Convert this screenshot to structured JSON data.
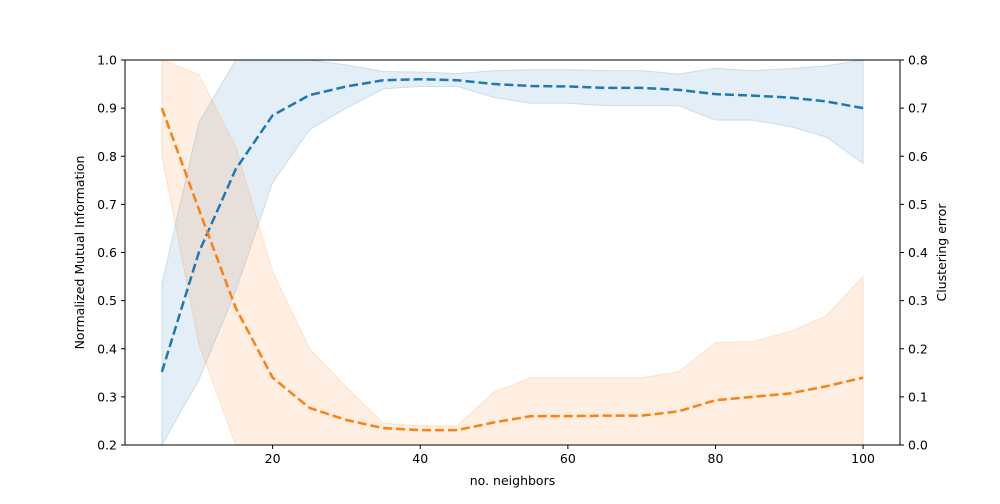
{
  "chart_data": {
    "type": "line",
    "xlabel": "no. neighbors",
    "ylabel": "Normalized Mutual Information",
    "y2label": "Clustering error",
    "xlim": [
      0,
      105
    ],
    "ylim": [
      0.2,
      1.0
    ],
    "y2lim": [
      0.0,
      0.8
    ],
    "xticks": [
      20,
      40,
      60,
      80,
      100
    ],
    "xtick_labels": [
      "20",
      "40",
      "60",
      "80",
      "100"
    ],
    "yticks": [
      0.2,
      0.3,
      0.4,
      0.5,
      0.6,
      0.7,
      0.8,
      0.9,
      1.0
    ],
    "ytick_labels": [
      "0.2",
      "0.3",
      "0.4",
      "0.5",
      "0.6",
      "0.7",
      "0.8",
      "0.9",
      "1.0"
    ],
    "y2ticks": [
      0.0,
      0.1,
      0.2,
      0.3,
      0.4,
      0.5,
      0.6,
      0.7,
      0.8
    ],
    "y2tick_labels": [
      "0.0",
      "0.1",
      "0.2",
      "0.3",
      "0.4",
      "0.5",
      "0.6",
      "0.7",
      "0.8"
    ],
    "grid": false,
    "x": [
      5,
      10,
      15,
      20,
      25,
      30,
      35,
      40,
      45,
      50,
      55,
      60,
      65,
      70,
      75,
      80,
      85,
      90,
      95,
      100
    ],
    "series": [
      {
        "axis": "left",
        "color": "#1f77b4",
        "linestyle": "dashed",
        "values": [
          0.352,
          0.6,
          0.773,
          0.885,
          0.927,
          0.945,
          0.958,
          0.96,
          0.958,
          0.95,
          0.946,
          0.945,
          0.942,
          0.942,
          0.938,
          0.929,
          0.926,
          0.922,
          0.914,
          0.9
        ],
        "lower": [
          0.17,
          0.335,
          0.52,
          0.745,
          0.855,
          0.9,
          0.94,
          0.945,
          0.945,
          0.922,
          0.91,
          0.91,
          0.905,
          0.905,
          0.905,
          0.875,
          0.875,
          0.862,
          0.84,
          0.785
        ],
        "upper": [
          0.535,
          0.87,
          1.02,
          1.02,
          1.0,
          0.99,
          0.976,
          0.975,
          0.972,
          0.978,
          0.98,
          0.98,
          0.978,
          0.978,
          0.971,
          0.983,
          0.978,
          0.982,
          0.988,
          1.02
        ]
      },
      {
        "axis": "right",
        "color": "#ff7f0e",
        "linestyle": "dashed",
        "values": [
          0.7,
          0.49,
          0.285,
          0.14,
          0.077,
          0.052,
          0.035,
          0.031,
          0.031,
          0.047,
          0.06,
          0.06,
          0.061,
          0.061,
          0.07,
          0.093,
          0.1,
          0.107,
          0.122,
          0.14
        ],
        "lower": [
          0.6,
          0.21,
          0.0,
          0.0,
          0.0,
          0.0,
          0.0,
          0.0,
          0.0,
          0.0,
          0.0,
          0.0,
          0.0,
          0.0,
          0.0,
          0.0,
          0.0,
          0.0,
          0.0,
          0.0
        ],
        "upper": [
          0.8,
          0.77,
          0.62,
          0.36,
          0.2,
          0.12,
          0.045,
          0.04,
          0.04,
          0.11,
          0.14,
          0.14,
          0.14,
          0.14,
          0.152,
          0.213,
          0.215,
          0.235,
          0.268,
          0.35
        ]
      }
    ]
  }
}
